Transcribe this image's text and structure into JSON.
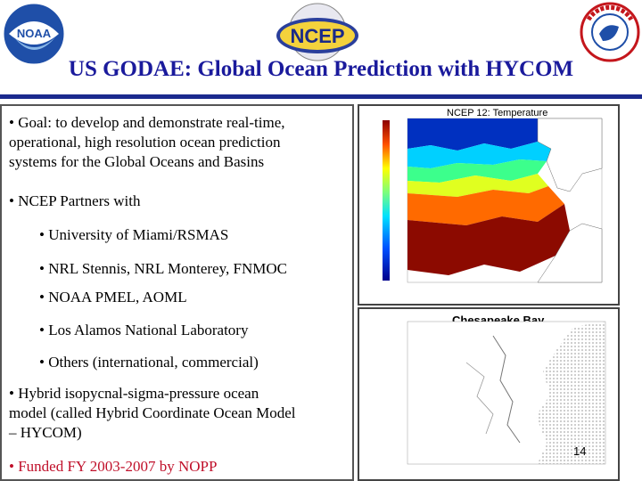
{
  "header": {
    "title": "US GODAE: Global Ocean Prediction with HYCOM",
    "logos": [
      {
        "name": "noaa-logo",
        "text": "NOAA"
      },
      {
        "name": "ncep-logo",
        "text": "NCEP"
      },
      {
        "name": "nws-logo",
        "text": "NATIONAL WEATHER SERVICE"
      }
    ]
  },
  "body": {
    "lines": [
      "•  Goal: to develop and demonstrate real-time,",
      "operational, high resolution ocean prediction",
      "systems for the Global Oceans and Basins",
      "•  NCEP Partners with",
      "•  University of Miami/RSMAS",
      "•  NRL Stennis, NRL Monterey, FNMOC",
      "•  NOAA PMEL, AOML",
      "•  Los Alamos National Laboratory",
      "•  Others (international, commercial)",
      "•  Hybrid isopycnal-sigma-pressure ocean",
      "model (called Hybrid Coordinate Ocean Model",
      "– HYCOM)",
      "•  Funded FY 2003-2007 by NOPP"
    ]
  },
  "figures": {
    "temperature_map_title": "NCEP 12: Temperature",
    "chesapeake_title": "Chesapeake  Bay",
    "page_number": "14"
  },
  "colors": {
    "title": "#1a1a9c",
    "rule": "#1b2a8e",
    "funded_line": "#c0102a"
  }
}
